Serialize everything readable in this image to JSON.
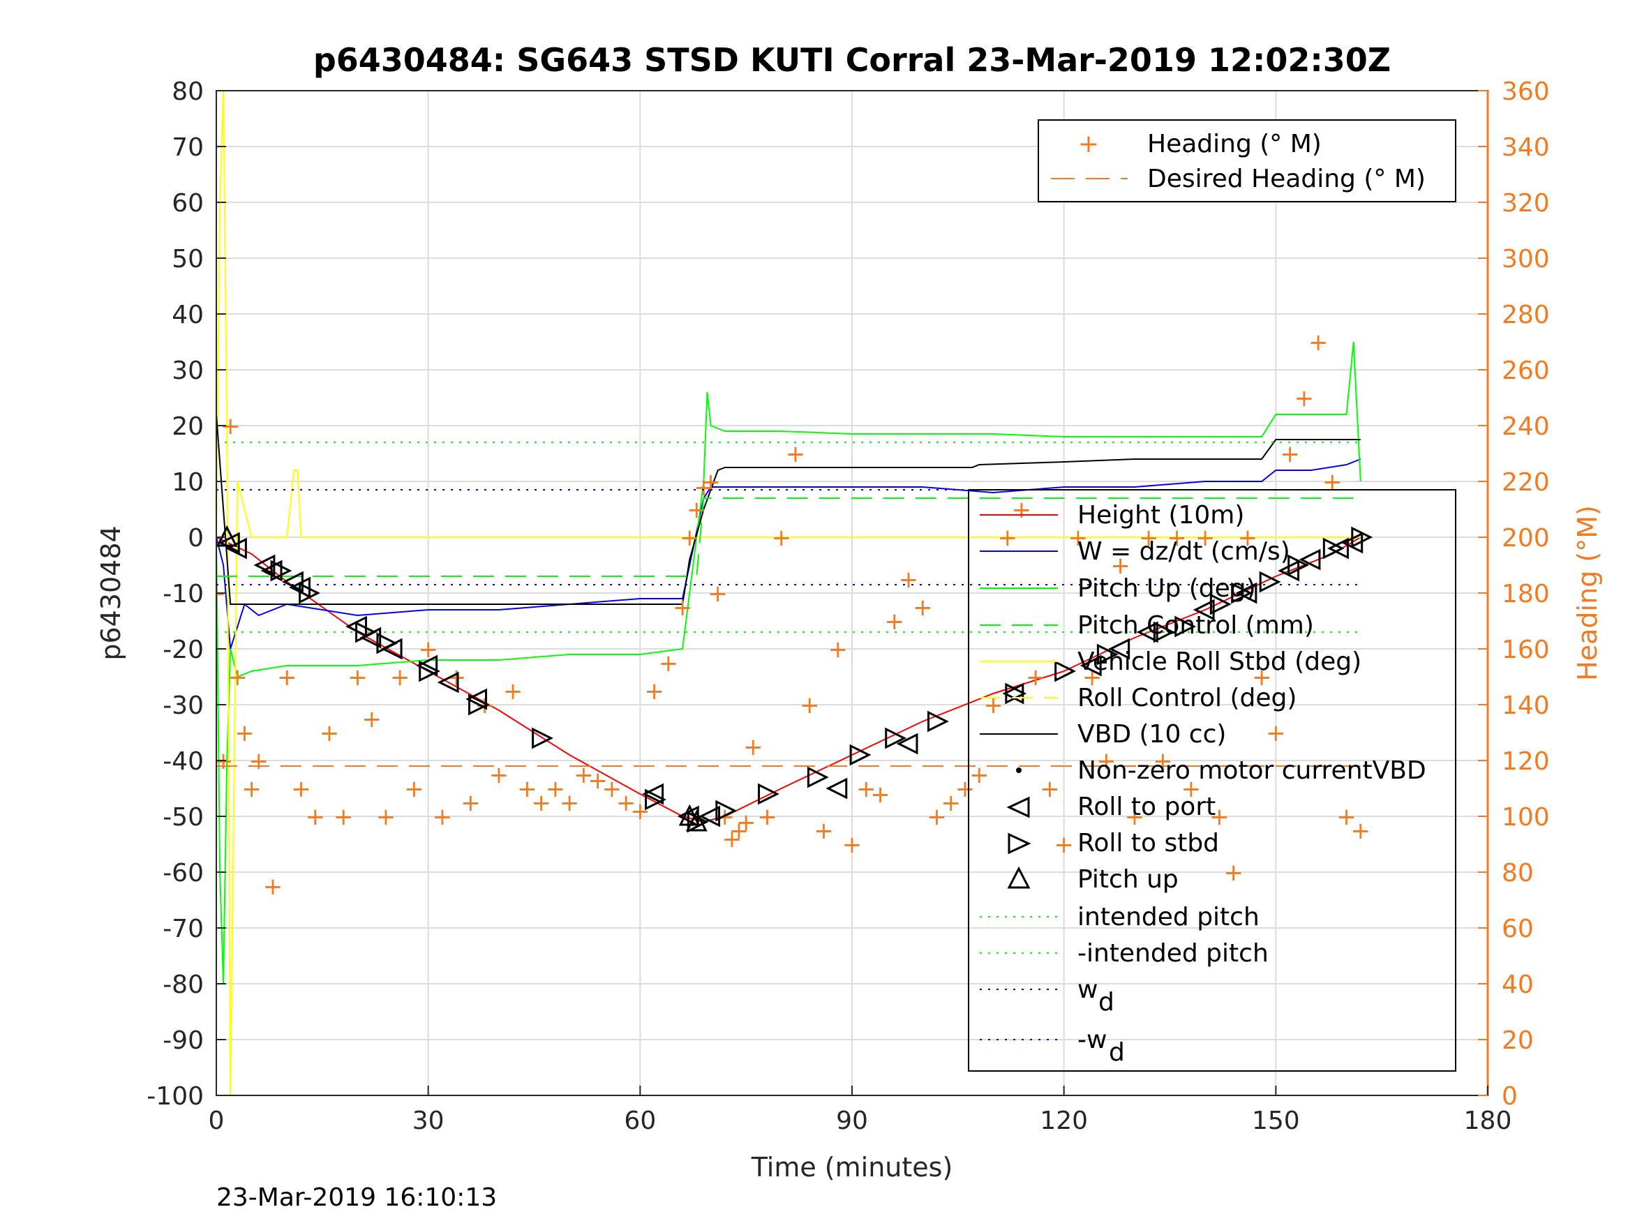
{
  "chart_data": {
    "type": "line",
    "title": "p6430484: SG643 STSD KUTI Corral 23-Mar-2019 12:02:30Z",
    "xlabel": "Time (minutes)",
    "ylabel": "p6430484",
    "ylabel_right": "Heading (°M)",
    "xlim": [
      0,
      180
    ],
    "ylim": [
      -100,
      80
    ],
    "ylim_right": [
      0,
      360
    ],
    "xticks": [
      "0",
      "30",
      "60",
      "90",
      "120",
      "150",
      "180"
    ],
    "yticks": [
      "80",
      "70",
      "60",
      "50",
      "40",
      "30",
      "20",
      "10",
      "0",
      "-10",
      "-20",
      "-30",
      "-40",
      "-50",
      "-60",
      "-70",
      "-80",
      "-90",
      "-100"
    ],
    "yticks_right": [
      "360",
      "340",
      "320",
      "300",
      "280",
      "260",
      "240",
      "220",
      "200",
      "180",
      "160",
      "140",
      "120",
      "100",
      "80",
      "60",
      "40",
      "20",
      "0"
    ],
    "grid": true,
    "timestamp": "23-Mar-2019 16:10:13",
    "colors": {
      "heading": "#f47a20",
      "height": "#ff0000",
      "w": "#0000ff",
      "pitch": "#00ff00",
      "roll": "#ffff00",
      "vbd": "#000000"
    },
    "legend_right": {
      "placement": "top-right",
      "entries": [
        "Heading (° M)",
        "Desired Heading (° M)"
      ]
    },
    "legend_left": {
      "placement": "right",
      "entries": [
        "Height (10m)",
        "W = dz/dt (cm/s)",
        "Pitch Up (deg)",
        "Pitch Control (mm)",
        "Vehicle Roll Stbd (deg)",
        "Roll Control (deg)",
        "VBD (10 cc)",
        "Non-zero motor currentVBD",
        "Roll to port",
        "Roll to stbd",
        "Pitch up",
        "intended pitch",
        "-intended pitch",
        "w",
        "-w"
      ],
      "subscript": "d"
    },
    "series": [
      {
        "name": "Height (10m)",
        "axis": "left",
        "x": [
          0,
          5,
          10,
          20,
          30,
          40,
          50,
          60,
          66,
          69,
          72,
          80,
          90,
          100,
          110,
          120,
          130,
          140,
          150,
          158,
          162
        ],
        "y": [
          0,
          -3,
          -8,
          -17,
          -24,
          -31,
          -39,
          -46,
          -50,
          -51,
          -50,
          -45,
          -39,
          -33,
          -28,
          -24,
          -18,
          -13,
          -7,
          -3,
          0
        ]
      },
      {
        "name": "W = dz/dt (cm/s)",
        "axis": "left",
        "x": [
          0,
          1,
          2,
          4,
          6,
          10,
          15,
          20,
          30,
          40,
          50,
          60,
          66,
          67,
          69,
          70,
          72,
          80,
          90,
          100,
          110,
          120,
          130,
          140,
          148,
          150,
          155,
          160,
          162
        ],
        "y": [
          0,
          -5,
          -20,
          -12,
          -14,
          -12,
          -13,
          -14,
          -13,
          -13,
          -12,
          -11,
          -11,
          -5,
          7,
          9,
          9,
          9,
          9,
          9,
          8,
          9,
          9,
          10,
          10,
          12,
          12,
          13,
          14
        ]
      },
      {
        "name": "Pitch Up (deg)",
        "axis": "left",
        "x": [
          0,
          0.5,
          1,
          1.5,
          2,
          3,
          5,
          10,
          20,
          30,
          40,
          50,
          60,
          66,
          67,
          68,
          69,
          69.5,
          70,
          72,
          80,
          90,
          100,
          110,
          120,
          130,
          140,
          148,
          149,
          150,
          155,
          160,
          161,
          162
        ],
        "y": [
          0,
          -60,
          -80,
          -40,
          -20,
          -25,
          -24,
          -23,
          -23,
          -22,
          -22,
          -21,
          -21,
          -20,
          -10,
          0,
          10,
          26,
          20,
          19,
          19,
          18.5,
          18.5,
          18.5,
          18,
          18,
          18,
          18,
          20,
          22,
          22,
          22,
          35,
          10
        ]
      },
      {
        "name": "Vehicle Roll Stbd (deg)",
        "axis": "left",
        "x": [
          0,
          0.5,
          1,
          1.5,
          2,
          3,
          5,
          10,
          11,
          11.5,
          12,
          20,
          30,
          40,
          60,
          70,
          80,
          100,
          120,
          140,
          150,
          162
        ],
        "y": [
          0,
          60,
          80,
          20,
          -100,
          10,
          0,
          0,
          12,
          12,
          0,
          0,
          0,
          0,
          0,
          0,
          0,
          0,
          0,
          0,
          0,
          0
        ]
      },
      {
        "name": "VBD (10 cc)",
        "axis": "left",
        "x": [
          0,
          1,
          2,
          10,
          30,
          50,
          66,
          67,
          69,
          71,
          72,
          80,
          100,
          107,
          108,
          120,
          130,
          148,
          150,
          162
        ],
        "y": [
          22,
          5,
          -12,
          -12,
          -12,
          -12,
          -12,
          -4,
          5,
          12,
          12.5,
          12.5,
          12.5,
          12.5,
          13,
          13.5,
          14,
          14,
          17.5,
          17.5
        ]
      },
      {
        "name": "Heading (° M)",
        "axis": "right",
        "x": [
          0,
          1,
          2,
          3,
          4,
          5,
          6,
          8,
          10,
          12,
          14,
          16,
          18,
          20,
          22,
          24,
          26,
          28,
          30,
          32,
          34,
          36,
          38,
          40,
          42,
          44,
          46,
          48,
          50,
          52,
          54,
          56,
          58,
          60,
          62,
          64,
          66,
          67,
          68,
          69,
          70,
          71,
          72,
          73,
          74,
          75,
          76,
          78,
          80,
          82,
          84,
          86,
          88,
          90,
          92,
          94,
          96,
          98,
          100,
          102,
          104,
          106,
          108,
          110,
          112,
          114,
          116,
          118,
          120,
          122,
          124,
          126,
          128,
          130,
          132,
          134,
          136,
          138,
          140,
          142,
          144,
          146,
          148,
          150,
          152,
          154,
          156,
          158,
          160,
          162
        ],
        "y": [
          180,
          120,
          240,
          150,
          130,
          110,
          120,
          75,
          150,
          110,
          100,
          130,
          100,
          150,
          135,
          100,
          150,
          110,
          160,
          100,
          150,
          105,
          140,
          115,
          145,
          110,
          105,
          110,
          105,
          115,
          113,
          110,
          105,
          102,
          145,
          155,
          175,
          200,
          210,
          218,
          220,
          180,
          100,
          92,
          95,
          98,
          125,
          100,
          200,
          230,
          140,
          95,
          160,
          90,
          110,
          108,
          170,
          185,
          175,
          100,
          105,
          110,
          115,
          140,
          200,
          210,
          150,
          110,
          90,
          200,
          150,
          120,
          190,
          100,
          200,
          120,
          200,
          110,
          200,
          100,
          80,
          200,
          150,
          130,
          230,
          250,
          270,
          220,
          100,
          95
        ]
      },
      {
        "name": "Desired Heading (° M)",
        "axis": "right",
        "x": [
          0,
          162
        ],
        "y": [
          118,
          118
        ]
      },
      {
        "name": "Pitch Control (mm)",
        "axis": "left",
        "x": [
          0,
          68,
          69,
          162
        ],
        "y": [
          -7,
          -7,
          7,
          7
        ]
      },
      {
        "name": "intended pitch",
        "axis": "left",
        "x": [
          0,
          162
        ],
        "y": [
          17,
          17
        ]
      },
      {
        "name": "-intended pitch",
        "axis": "left",
        "x": [
          0,
          162
        ],
        "y": [
          -17,
          -17
        ]
      },
      {
        "name": "w",
        "axis": "left",
        "x": [
          0,
          162
        ],
        "y": [
          8.5,
          8.5
        ]
      },
      {
        "name": "-w",
        "axis": "left",
        "x": [
          0,
          162
        ],
        "y": [
          -8.5,
          -8.5
        ]
      }
    ],
    "markers": {
      "roll_to_port": {
        "x": [
          2,
          3,
          7,
          8,
          11,
          12,
          20,
          22,
          25,
          30,
          33,
          37,
          62,
          67,
          70,
          88,
          98,
          113,
          124,
          128,
          132,
          140,
          146,
          152,
          155,
          159,
          161
        ],
        "y": [
          -1,
          -2,
          -5,
          -6,
          -8,
          -9,
          -16,
          -18,
          -20,
          -23,
          -26,
          -29,
          -46,
          -50,
          -50,
          -45,
          -37,
          -28,
          -23,
          -20,
          -17,
          -13,
          -10,
          -6,
          -4,
          -2,
          -1
        ]
      },
      "roll_to_stbd": {
        "x": [
          9,
          13,
          21,
          24,
          30,
          37,
          46,
          62,
          68,
          72,
          78,
          85,
          91,
          96,
          102,
          113,
          120,
          126,
          134,
          137,
          142,
          145,
          149,
          153,
          158,
          162
        ],
        "y": [
          -6,
          -10,
          -17,
          -19,
          -24,
          -30,
          -36,
          -47,
          -51,
          -49,
          -46,
          -43,
          -39,
          -36,
          -33,
          -28,
          -24,
          -21,
          -17,
          -16,
          -12,
          -10,
          -8,
          -5,
          -2,
          0
        ]
      },
      "pitch_up": {
        "x": [
          1.5,
          67,
          68
        ],
        "y": [
          0,
          -50,
          -51
        ]
      }
    }
  }
}
